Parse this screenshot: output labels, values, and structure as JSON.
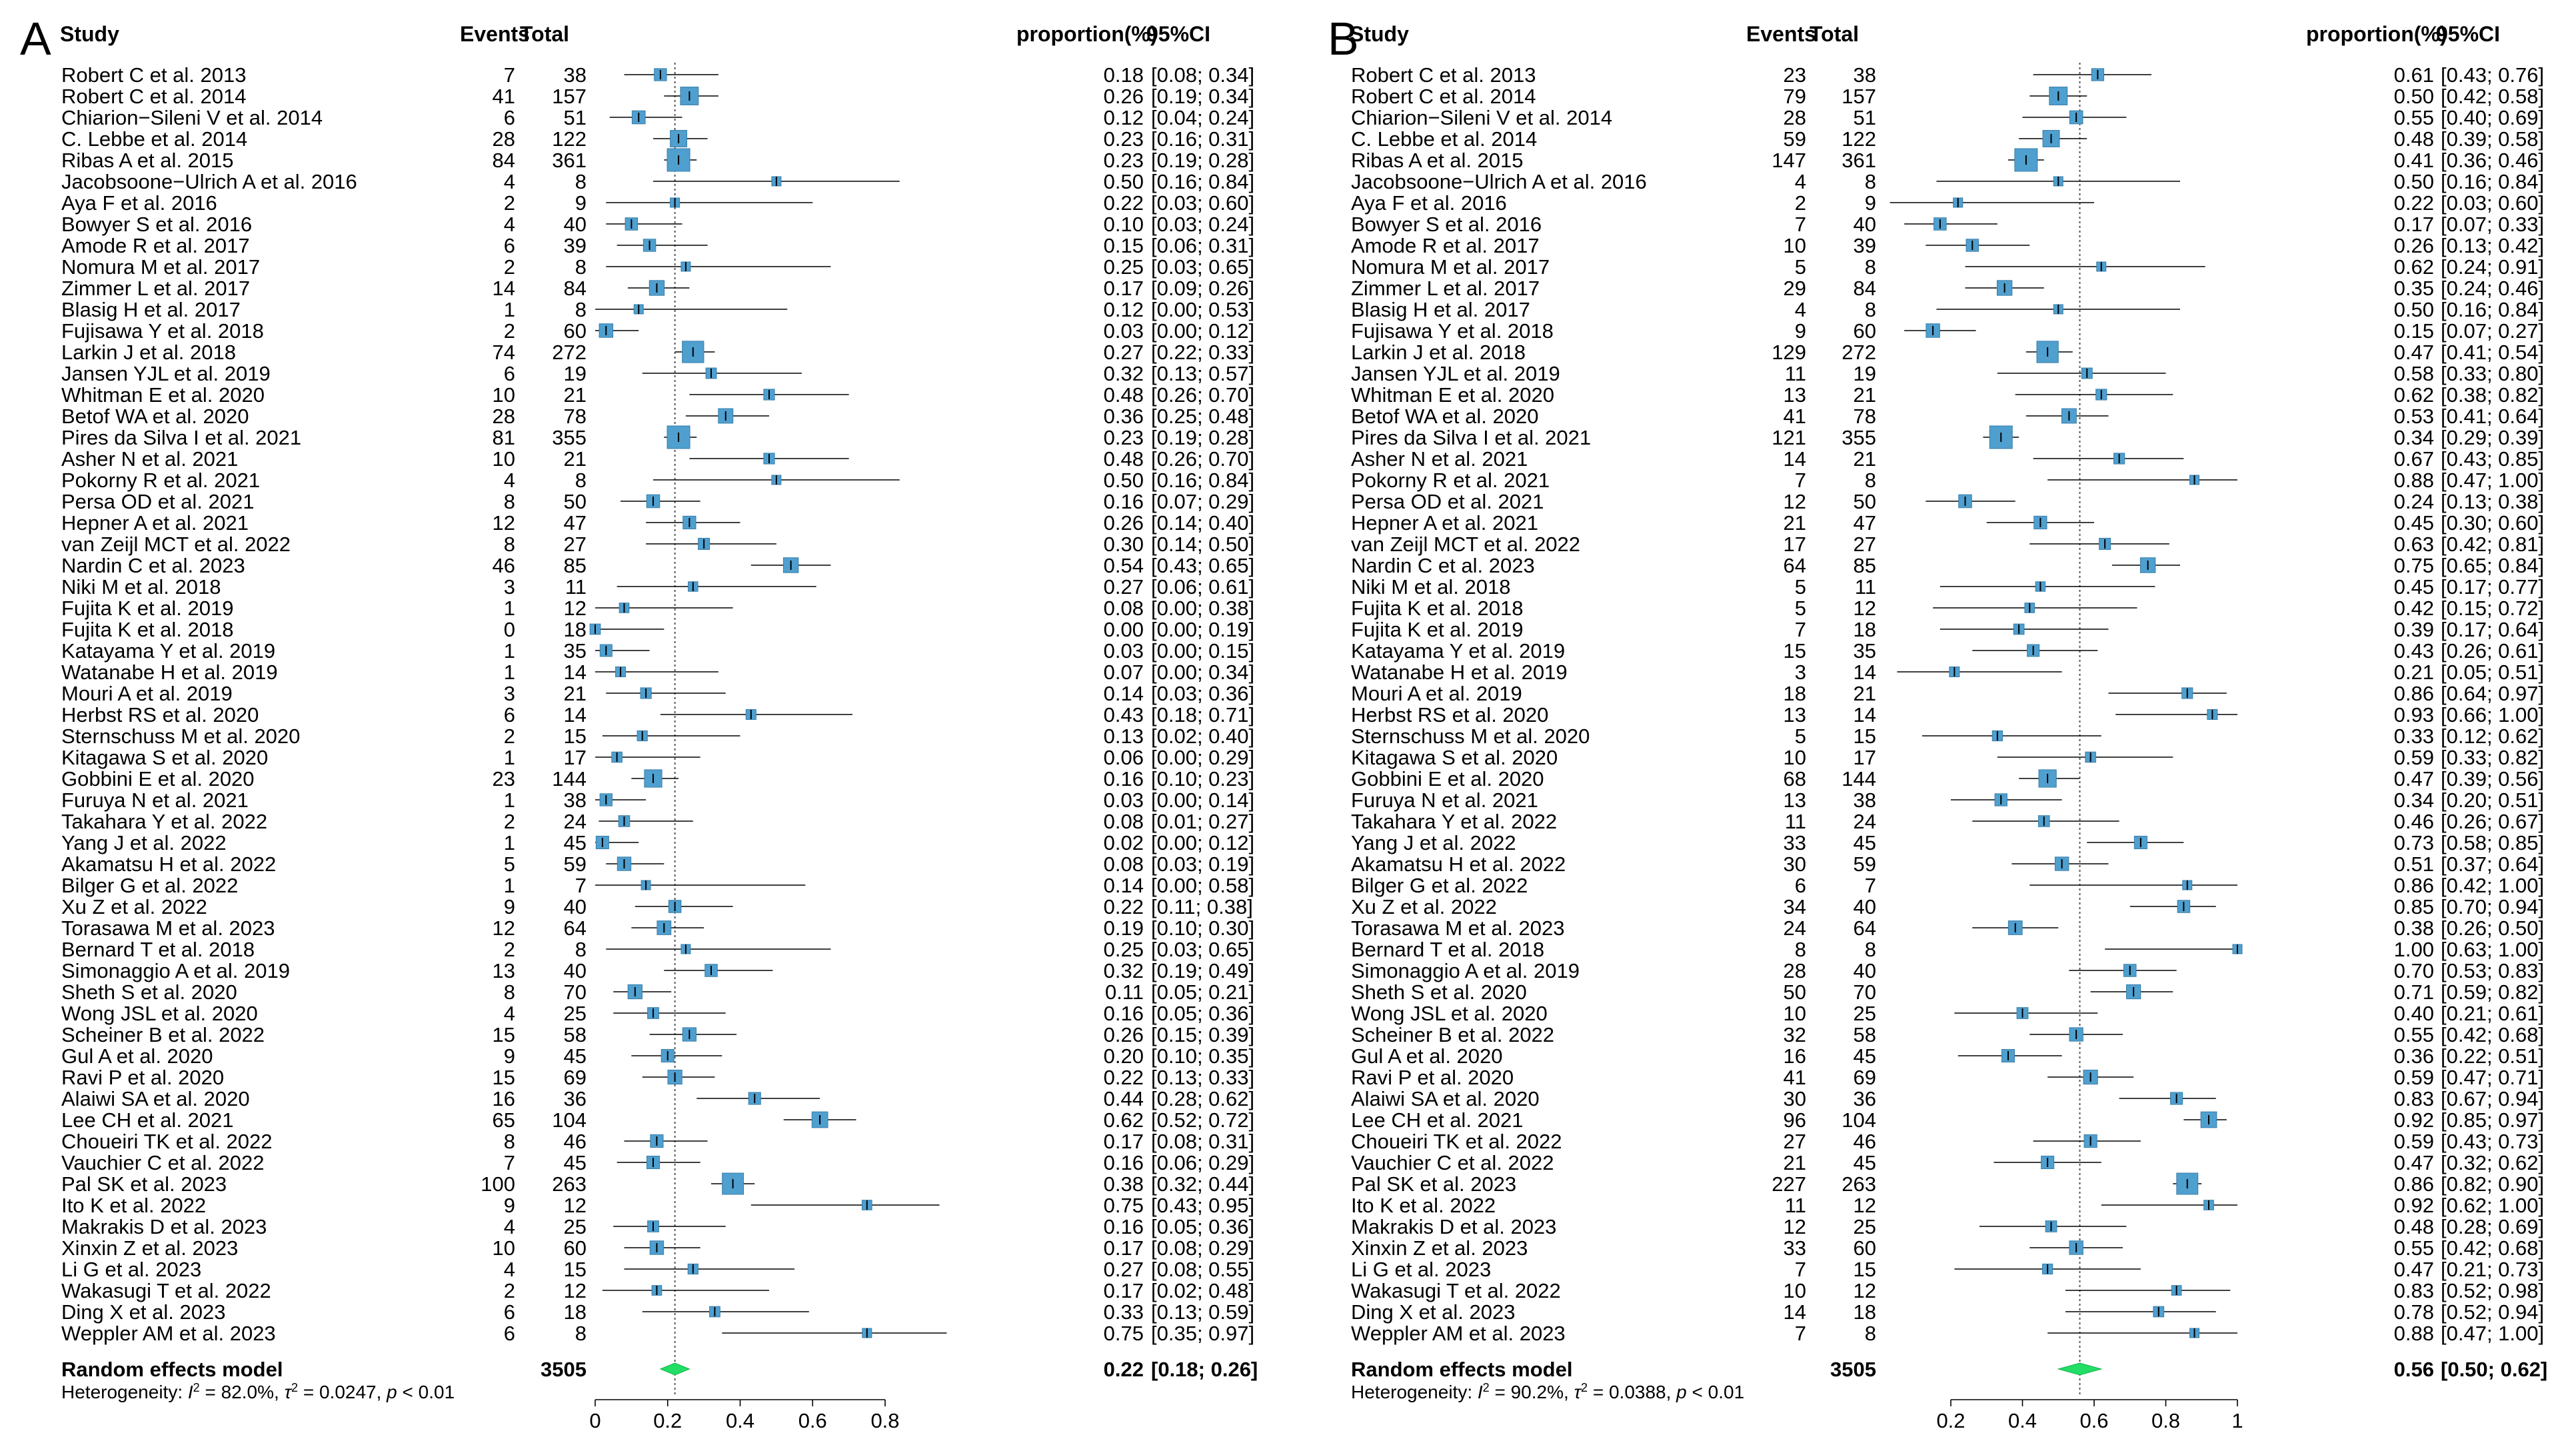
{
  "headers": {
    "study": "Study",
    "events": "Events",
    "total": "Total",
    "proportion": "proportion(%)",
    "ci": "95%CI"
  },
  "studies": [
    {
      "name": "Robert C et al. 2013",
      "total": 38
    },
    {
      "name": "Robert C et al. 2014",
      "total": 157
    },
    {
      "name": "Chiarion−Sileni V et al. 2014",
      "total": 51
    },
    {
      "name": "C. Lebbe et al. 2014",
      "total": 122
    },
    {
      "name": "Ribas A et al. 2015",
      "total": 361
    },
    {
      "name": "Jacobsoone−Ulrich A et al. 2016",
      "total": 8
    },
    {
      "name": "Aya F et al. 2016",
      "total": 9
    },
    {
      "name": "Bowyer S et al. 2016",
      "total": 40
    },
    {
      "name": "Amode R et al. 2017",
      "total": 39
    },
    {
      "name": "Nomura M et al. 2017",
      "total": 8
    },
    {
      "name": "Zimmer L et al. 2017",
      "total": 84
    },
    {
      "name": "Blasig H et al. 2017",
      "total": 8
    },
    {
      "name": "Fujisawa Y et al. 2018",
      "total": 60
    },
    {
      "name": "Larkin J et al. 2018",
      "total": 272
    },
    {
      "name": "Jansen YJL et al. 2019",
      "total": 19
    },
    {
      "name": "Whitman E et al. 2020",
      "total": 21
    },
    {
      "name": "Betof WA et al. 2020",
      "total": 78
    },
    {
      "name": "Pires da Silva I et al. 2021",
      "total": 355
    },
    {
      "name": "Asher N et al. 2021",
      "total": 21
    },
    {
      "name": "Pokorny R et al. 2021",
      "total": 8
    },
    {
      "name": "Persa OD et al. 2021",
      "total": 50
    },
    {
      "name": "Hepner A et al. 2021",
      "total": 47
    },
    {
      "name": "van Zeijl MCT et al. 2022",
      "total": 27
    },
    {
      "name": "Nardin C et al. 2023",
      "total": 85
    },
    {
      "name": "Niki M et al. 2018",
      "total": 11
    },
    {
      "name": "Fujita K et al. 2019",
      "total": 12
    },
    {
      "name": "Fujita K et al. 2018",
      "total": 18
    },
    {
      "name": "Katayama Y et al. 2019",
      "total": 35
    },
    {
      "name": "Watanabe H et al. 2019",
      "total": 14
    },
    {
      "name": "Mouri A et al. 2019",
      "total": 21
    },
    {
      "name": "Herbst RS et al. 2020",
      "total": 14
    },
    {
      "name": "Sternschuss M et al. 2020",
      "total": 15
    },
    {
      "name": "Kitagawa S et al. 2020",
      "total": 17
    },
    {
      "name": "Gobbini E et al. 2020",
      "total": 144
    },
    {
      "name": "Furuya N et al. 2021",
      "total": 38
    },
    {
      "name": "Takahara Y et al. 2022",
      "total": 24
    },
    {
      "name": "Yang J et al. 2022",
      "total": 45
    },
    {
      "name": "Akamatsu H et al. 2022",
      "total": 59
    },
    {
      "name": "Bilger G et al. 2022",
      "total": 7
    },
    {
      "name": "Xu Z et al. 2022",
      "total": 40
    },
    {
      "name": "Torasawa M et al. 2023",
      "total": 64
    },
    {
      "name": "Bernard T et al. 2018",
      "total": 8
    },
    {
      "name": "Simonaggio A et al. 2019",
      "total": 40
    },
    {
      "name": "Sheth S et al. 2020",
      "total": 70
    },
    {
      "name": "Wong JSL et al. 2020",
      "total": 25
    },
    {
      "name": "Scheiner B et al. 2022",
      "total": 58
    },
    {
      "name": "Gul A et al. 2020",
      "total": 45
    },
    {
      "name": "Ravi P et al. 2020",
      "total": 69
    },
    {
      "name": "Alaiwi SA et al. 2020",
      "total": 36
    },
    {
      "name": "Lee CH et al. 2021",
      "total": 104
    },
    {
      "name": "Choueiri TK et al. 2022",
      "total": 46
    },
    {
      "name": "Vauchier C et al. 2022",
      "total": 45
    },
    {
      "name": "Pal SK et al. 2023",
      "total": 263
    },
    {
      "name": "Ito K et al. 2022",
      "total": 12
    },
    {
      "name": "Makrakis D et al. 2023",
      "total": 25
    },
    {
      "name": "Xinxin Z et al. 2023",
      "total": 60
    },
    {
      "name": "Li G et al. 2023",
      "total": 15
    },
    {
      "name": "Wakasugi T et al. 2022",
      "total": 12
    },
    {
      "name": "Ding X et al. 2023",
      "total": 18
    },
    {
      "name": "Weppler AM et al. 2023",
      "total": 8
    }
  ],
  "chart_data": [
    {
      "type": "forest",
      "panel_label": "A",
      "xlim": [
        0,
        0.8
      ],
      "ticks": [
        0,
        0.2,
        0.4,
        0.6,
        0.8
      ],
      "tick_labels": [
        "0",
        "0.2",
        "0.4",
        "0.6",
        "0.8"
      ],
      "events": [
        7,
        41,
        6,
        28,
        84,
        4,
        2,
        4,
        6,
        2,
        14,
        1,
        2,
        74,
        6,
        10,
        28,
        81,
        10,
        4,
        8,
        12,
        8,
        46,
        3,
        1,
        0,
        1,
        1,
        3,
        6,
        2,
        1,
        23,
        1,
        2,
        1,
        5,
        1,
        9,
        12,
        2,
        13,
        8,
        4,
        15,
        9,
        15,
        16,
        65,
        8,
        7,
        100,
        9,
        4,
        10,
        4,
        2,
        6,
        6
      ],
      "est": [
        0.18,
        0.26,
        0.12,
        0.23,
        0.23,
        0.5,
        0.22,
        0.1,
        0.15,
        0.25,
        0.17,
        0.12,
        0.03,
        0.27,
        0.32,
        0.48,
        0.36,
        0.23,
        0.48,
        0.5,
        0.16,
        0.26,
        0.3,
        0.54,
        0.27,
        0.08,
        0.0,
        0.03,
        0.07,
        0.14,
        0.43,
        0.13,
        0.06,
        0.16,
        0.03,
        0.08,
        0.02,
        0.08,
        0.14,
        0.22,
        0.19,
        0.25,
        0.32,
        0.11,
        0.16,
        0.26,
        0.2,
        0.22,
        0.44,
        0.62,
        0.17,
        0.16,
        0.38,
        0.75,
        0.16,
        0.17,
        0.27,
        0.17,
        0.33,
        0.75
      ],
      "lo": [
        0.08,
        0.19,
        0.04,
        0.16,
        0.19,
        0.16,
        0.03,
        0.03,
        0.06,
        0.03,
        0.09,
        0.0,
        0.0,
        0.22,
        0.13,
        0.26,
        0.25,
        0.19,
        0.26,
        0.16,
        0.07,
        0.14,
        0.14,
        0.43,
        0.06,
        0.0,
        0.0,
        0.0,
        0.0,
        0.03,
        0.18,
        0.02,
        0.0,
        0.1,
        0.0,
        0.01,
        0.0,
        0.03,
        0.0,
        0.11,
        0.1,
        0.03,
        0.19,
        0.05,
        0.05,
        0.15,
        0.1,
        0.13,
        0.28,
        0.52,
        0.08,
        0.06,
        0.32,
        0.43,
        0.05,
        0.08,
        0.08,
        0.02,
        0.13,
        0.35
      ],
      "hi": [
        0.34,
        0.34,
        0.24,
        0.31,
        0.28,
        0.84,
        0.6,
        0.24,
        0.31,
        0.65,
        0.26,
        0.53,
        0.12,
        0.33,
        0.57,
        0.7,
        0.48,
        0.28,
        0.7,
        0.84,
        0.29,
        0.4,
        0.5,
        0.65,
        0.61,
        0.38,
        0.19,
        0.15,
        0.34,
        0.36,
        0.71,
        0.4,
        0.29,
        0.23,
        0.14,
        0.27,
        0.12,
        0.19,
        0.58,
        0.38,
        0.3,
        0.65,
        0.49,
        0.21,
        0.36,
        0.39,
        0.35,
        0.33,
        0.62,
        0.72,
        0.31,
        0.29,
        0.44,
        0.95,
        0.36,
        0.29,
        0.55,
        0.48,
        0.59,
        0.97
      ],
      "prop_text": [
        "0.18",
        "0.26",
        "0.12",
        "0.23",
        "0.23",
        "0.50",
        "0.22",
        "0.10",
        "0.15",
        "0.25",
        "0.17",
        "0.12",
        "0.03",
        "0.27",
        "0.32",
        "0.48",
        "0.36",
        "0.23",
        "0.48",
        "0.50",
        "0.16",
        "0.26",
        "0.30",
        "0.54",
        "0.27",
        "0.08",
        "0.00",
        "0.03",
        "0.07",
        "0.14",
        "0.43",
        "0.13",
        "0.06",
        "0.16",
        "0.03",
        "0.08",
        "0.02",
        "0.08",
        "0.14",
        "0.22",
        "0.19",
        "0.25",
        "0.32",
        "0.11",
        "0.16",
        "0.26",
        "0.20",
        "0.22",
        "0.44",
        "0.62",
        "0.17",
        "0.16",
        "0.38",
        "0.75",
        "0.16",
        "0.17",
        "0.27",
        "0.17",
        "0.33",
        "0.75"
      ],
      "ci_text": [
        "[0.08; 0.34]",
        "[0.19; 0.34]",
        "[0.04; 0.24]",
        "[0.16; 0.31]",
        "[0.19; 0.28]",
        "[0.16; 0.84]",
        "[0.03; 0.60]",
        "[0.03; 0.24]",
        "[0.06; 0.31]",
        "[0.03; 0.65]",
        "[0.09; 0.26]",
        "[0.00; 0.53]",
        "[0.00; 0.12]",
        "[0.22; 0.33]",
        "[0.13; 0.57]",
        "[0.26; 0.70]",
        "[0.25; 0.48]",
        "[0.19; 0.28]",
        "[0.26; 0.70]",
        "[0.16; 0.84]",
        "[0.07; 0.29]",
        "[0.14; 0.40]",
        "[0.14; 0.50]",
        "[0.43; 0.65]",
        "[0.06; 0.61]",
        "[0.00; 0.38]",
        "[0.00; 0.19]",
        "[0.00; 0.15]",
        "[0.00; 0.34]",
        "[0.03; 0.36]",
        "[0.18; 0.71]",
        "[0.02; 0.40]",
        "[0.00; 0.29]",
        "[0.10; 0.23]",
        "[0.00; 0.14]",
        "[0.01; 0.27]",
        "[0.00; 0.12]",
        "[0.03; 0.19]",
        "[0.00; 0.58]",
        "[0.11; 0.38]",
        "[0.10; 0.30]",
        "[0.03; 0.65]",
        "[0.19; 0.49]",
        "[0.05; 0.21]",
        "[0.05; 0.36]",
        "[0.15; 0.39]",
        "[0.10; 0.35]",
        "[0.13; 0.33]",
        "[0.28; 0.62]",
        "[0.52; 0.72]",
        "[0.08; 0.31]",
        "[0.06; 0.29]",
        "[0.32; 0.44]",
        "[0.43; 0.95]",
        "[0.05; 0.36]",
        "[0.08; 0.29]",
        "[0.08; 0.55]",
        "[0.02; 0.48]",
        "[0.13; 0.59]",
        "[0.35; 0.97]"
      ],
      "summary": {
        "label": "Random effects model",
        "total": "3505",
        "est": 0.22,
        "lo": 0.18,
        "hi": 0.26,
        "prop_text": "0.22",
        "ci_text": "[0.18; 0.26]"
      },
      "heterogeneity": {
        "prefix": "Heterogeneity: ",
        "i2": "82.0%,",
        "tau2": "0.0247,",
        "p": "< 0.01"
      }
    },
    {
      "type": "forest",
      "panel_label": "B",
      "xlim": [
        0.1,
        1.0
      ],
      "ticks": [
        0.2,
        0.4,
        0.6,
        0.8,
        1.0
      ],
      "tick_labels": [
        "0.2",
        "0.4",
        "0.6",
        "0.8",
        "1"
      ],
      "events": [
        23,
        79,
        28,
        59,
        147,
        4,
        2,
        7,
        10,
        5,
        29,
        4,
        9,
        129,
        11,
        13,
        41,
        121,
        14,
        7,
        12,
        21,
        17,
        64,
        5,
        5,
        7,
        15,
        3,
        18,
        13,
        5,
        10,
        68,
        13,
        11,
        33,
        30,
        6,
        34,
        24,
        8,
        28,
        50,
        10,
        32,
        16,
        41,
        30,
        96,
        27,
        21,
        227,
        11,
        12,
        33,
        7,
        10,
        14,
        7
      ],
      "est": [
        0.61,
        0.5,
        0.55,
        0.48,
        0.41,
        0.5,
        0.22,
        0.17,
        0.26,
        0.62,
        0.35,
        0.5,
        0.15,
        0.47,
        0.58,
        0.62,
        0.53,
        0.34,
        0.67,
        0.88,
        0.24,
        0.45,
        0.63,
        0.75,
        0.45,
        0.42,
        0.39,
        0.43,
        0.21,
        0.86,
        0.93,
        0.33,
        0.59,
        0.47,
        0.34,
        0.46,
        0.73,
        0.51,
        0.86,
        0.85,
        0.38,
        1.0,
        0.7,
        0.71,
        0.4,
        0.55,
        0.36,
        0.59,
        0.83,
        0.92,
        0.59,
        0.47,
        0.86,
        0.92,
        0.48,
        0.55,
        0.47,
        0.83,
        0.78,
        0.88
      ],
      "lo": [
        0.43,
        0.42,
        0.4,
        0.39,
        0.36,
        0.16,
        0.03,
        0.07,
        0.13,
        0.24,
        0.24,
        0.16,
        0.07,
        0.41,
        0.33,
        0.38,
        0.41,
        0.29,
        0.43,
        0.47,
        0.13,
        0.3,
        0.42,
        0.65,
        0.17,
        0.15,
        0.17,
        0.26,
        0.05,
        0.64,
        0.66,
        0.12,
        0.33,
        0.39,
        0.2,
        0.26,
        0.58,
        0.37,
        0.42,
        0.7,
        0.26,
        0.63,
        0.53,
        0.59,
        0.21,
        0.42,
        0.22,
        0.47,
        0.67,
        0.85,
        0.43,
        0.32,
        0.82,
        0.62,
        0.28,
        0.42,
        0.21,
        0.52,
        0.52,
        0.47
      ],
      "hi": [
        0.76,
        0.58,
        0.69,
        0.58,
        0.46,
        0.84,
        0.6,
        0.33,
        0.42,
        0.91,
        0.46,
        0.84,
        0.27,
        0.54,
        0.8,
        0.82,
        0.64,
        0.39,
        0.85,
        1.0,
        0.38,
        0.6,
        0.81,
        0.84,
        0.77,
        0.72,
        0.64,
        0.61,
        0.51,
        0.97,
        1.0,
        0.62,
        0.82,
        0.56,
        0.51,
        0.67,
        0.85,
        0.64,
        1.0,
        0.94,
        0.5,
        1.0,
        0.83,
        0.82,
        0.61,
        0.68,
        0.51,
        0.71,
        0.94,
        0.97,
        0.73,
        0.62,
        0.9,
        1.0,
        0.69,
        0.68,
        0.73,
        0.98,
        0.94,
        1.0
      ],
      "prop_text": [
        "0.61",
        "0.50",
        "0.55",
        "0.48",
        "0.41",
        "0.50",
        "0.22",
        "0.17",
        "0.26",
        "0.62",
        "0.35",
        "0.50",
        "0.15",
        "0.47",
        "0.58",
        "0.62",
        "0.53",
        "0.34",
        "0.67",
        "0.88",
        "0.24",
        "0.45",
        "0.63",
        "0.75",
        "0.45",
        "0.42",
        "0.39",
        "0.43",
        "0.21",
        "0.86",
        "0.93",
        "0.33",
        "0.59",
        "0.47",
        "0.34",
        "0.46",
        "0.73",
        "0.51",
        "0.86",
        "0.85",
        "0.38",
        "1.00",
        "0.70",
        "0.71",
        "0.40",
        "0.55",
        "0.36",
        "0.59",
        "0.83",
        "0.92",
        "0.59",
        "0.47",
        "0.86",
        "0.92",
        "0.48",
        "0.55",
        "0.47",
        "0.83",
        "0.78",
        "0.88"
      ],
      "ci_text": [
        "[0.43; 0.76]",
        "[0.42; 0.58]",
        "[0.40; 0.69]",
        "[0.39; 0.58]",
        "[0.36; 0.46]",
        "[0.16; 0.84]",
        "[0.03; 0.60]",
        "[0.07; 0.33]",
        "[0.13; 0.42]",
        "[0.24; 0.91]",
        "[0.24; 0.46]",
        "[0.16; 0.84]",
        "[0.07; 0.27]",
        "[0.41; 0.54]",
        "[0.33; 0.80]",
        "[0.38; 0.82]",
        "[0.41; 0.64]",
        "[0.29; 0.39]",
        "[0.43; 0.85]",
        "[0.47; 1.00]",
        "[0.13; 0.38]",
        "[0.30; 0.60]",
        "[0.42; 0.81]",
        "[0.65; 0.84]",
        "[0.17; 0.77]",
        "[0.15; 0.72]",
        "[0.17; 0.64]",
        "[0.26; 0.61]",
        "[0.05; 0.51]",
        "[0.64; 0.97]",
        "[0.66; 1.00]",
        "[0.12; 0.62]",
        "[0.33; 0.82]",
        "[0.39; 0.56]",
        "[0.20; 0.51]",
        "[0.26; 0.67]",
        "[0.58; 0.85]",
        "[0.37; 0.64]",
        "[0.42; 1.00]",
        "[0.70; 0.94]",
        "[0.26; 0.50]",
        "[0.63; 1.00]",
        "[0.53; 0.83]",
        "[0.59; 0.82]",
        "[0.21; 0.61]",
        "[0.42; 0.68]",
        "[0.22; 0.51]",
        "[0.47; 0.71]",
        "[0.67; 0.94]",
        "[0.85; 0.97]",
        "[0.43; 0.73]",
        "[0.32; 0.62]",
        "[0.82; 0.90]",
        "[0.62; 1.00]",
        "[0.28; 0.69]",
        "[0.42; 0.68]",
        "[0.21; 0.73]",
        "[0.52; 0.98]",
        "[0.52; 0.94]",
        "[0.47; 1.00]"
      ],
      "summary": {
        "label": "Random effects model",
        "total": "3505",
        "est": 0.56,
        "lo": 0.5,
        "hi": 0.62,
        "prop_text": "0.56",
        "ci_text": "[0.50; 0.62]"
      },
      "heterogeneity": {
        "prefix": "Heterogeneity: ",
        "i2": "90.2%,",
        "tau2": "0.0388,",
        "p": "< 0.01"
      }
    }
  ],
  "panel_B_name_overrides": {
    "25": "Fujita K et al. 2018",
    "26": "Fujita K et al. 2019"
  },
  "colors": {
    "box": "#4f9fcf",
    "box_stroke": "#3a7ea8",
    "diamond": "#22dd66",
    "ref_line": "#555555"
  }
}
